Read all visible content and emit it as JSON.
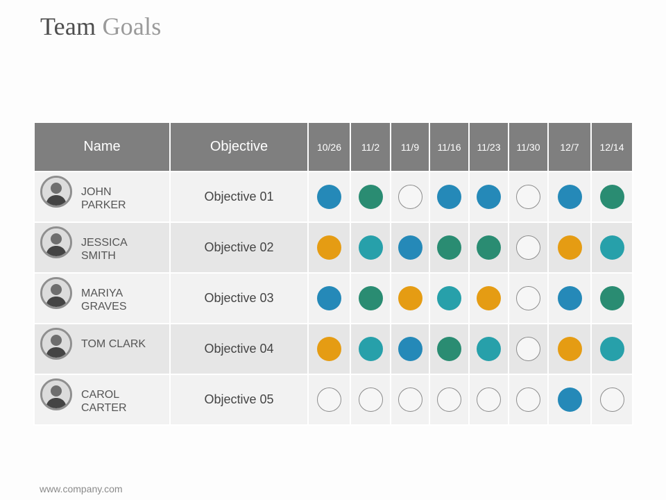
{
  "title": {
    "part1": "Team",
    "part2": "Goals"
  },
  "table": {
    "headers": {
      "name": "Name",
      "objective": "Objective",
      "dates": [
        "10/26",
        "11/2",
        "11/9",
        "11/16",
        "11/23",
        "11/30",
        "12/7",
        "12/14"
      ]
    },
    "rows": [
      {
        "name_line1": "JOHN",
        "name_line2": "PARKER",
        "objective": "Objective 01",
        "statuses": [
          "blue",
          "green",
          "empty",
          "blue",
          "blue",
          "empty",
          "blue",
          "green"
        ]
      },
      {
        "name_line1": "JESSICA",
        "name_line2": "SMITH",
        "objective": "Objective 02",
        "statuses": [
          "orange",
          "teal",
          "blue",
          "green",
          "green",
          "empty",
          "orange",
          "teal"
        ]
      },
      {
        "name_line1": "MARIYA",
        "name_line2": "GRAVES",
        "objective": "Objective 03",
        "statuses": [
          "blue",
          "green",
          "orange",
          "teal",
          "orange",
          "empty",
          "blue",
          "green"
        ]
      },
      {
        "name_line1": "TOM CLARK",
        "name_line2": "",
        "objective": "Objective 04",
        "statuses": [
          "orange",
          "teal",
          "blue",
          "green",
          "teal",
          "empty",
          "orange",
          "teal"
        ]
      },
      {
        "name_line1": "CAROL",
        "name_line2": "CARTER",
        "objective": "Objective 05",
        "statuses": [
          "empty",
          "empty",
          "empty",
          "empty",
          "empty",
          "empty",
          "blue",
          "empty"
        ]
      }
    ]
  },
  "status_colors": {
    "blue": "#2589b8",
    "green": "#2a8c72",
    "teal": "#27a0aa",
    "orange": "#e59c13",
    "empty": "#f6f6f6"
  },
  "footer": {
    "url": "www.company.com"
  }
}
